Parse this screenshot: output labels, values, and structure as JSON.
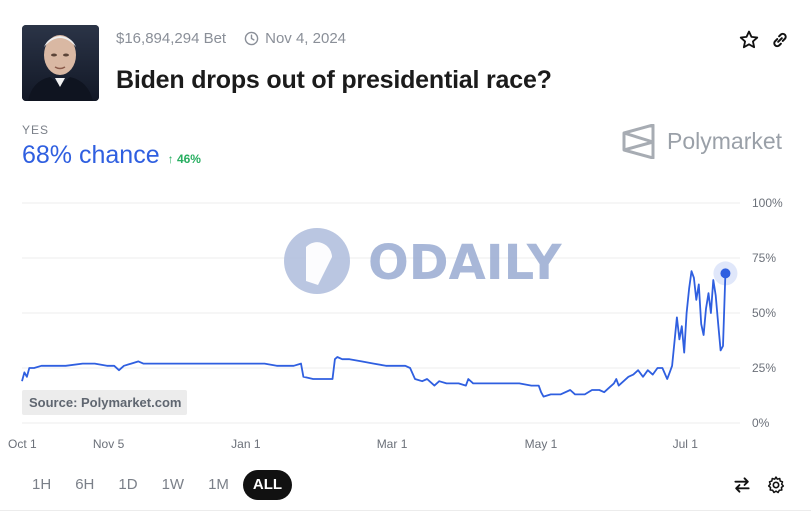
{
  "market": {
    "volume": "$16,894,294 Bet",
    "end_date": "Nov 4, 2024",
    "title": "Biden drops out of presidential race?",
    "outcome_label": "YES",
    "chance": "68% chance",
    "change": "↑ 46%",
    "brand": "Polymarket",
    "watermark": "ODAILY",
    "source": "Source: Polymarket.com"
  },
  "icons": {
    "thumbnail": "portrait-photo",
    "clock": "clock-icon",
    "star": "star-icon",
    "link": "link-icon",
    "brand_logo": "polymarket-logo",
    "swap": "swap-arrows-icon",
    "settings": "gear-icon"
  },
  "colors": {
    "line": "#2f5fe0",
    "up": "#27ae60",
    "watermark": "#9fb0d4"
  },
  "time_buttons": [
    "1H",
    "6H",
    "1D",
    "1W",
    "1M",
    "ALL"
  ],
  "time_selected": "ALL",
  "chart_data": {
    "type": "line",
    "ylim": [
      0,
      100
    ],
    "yticks": [
      "0%",
      "25%",
      "50%",
      "75%",
      "100%"
    ],
    "ytick_values": [
      0,
      25,
      50,
      75,
      100
    ],
    "xticks": [
      {
        "label": "Oct 1",
        "day": 0
      },
      {
        "label": "Nov 5",
        "day": 35
      },
      {
        "label": "Jan 1",
        "day": 92
      },
      {
        "label": "Mar 1",
        "day": 152
      },
      {
        "label": "May 1",
        "day": 213
      },
      {
        "label": "Jul 1",
        "day": 274
      }
    ],
    "grid": true,
    "series": [
      {
        "values": [
          [
            0,
            19
          ],
          [
            1,
            23
          ],
          [
            2,
            21
          ],
          [
            3,
            25
          ],
          [
            5,
            25
          ],
          [
            8,
            26
          ],
          [
            12,
            26
          ],
          [
            18,
            26
          ],
          [
            25,
            27
          ],
          [
            30,
            27
          ],
          [
            35,
            26
          ],
          [
            38,
            26
          ],
          [
            40,
            24
          ],
          [
            42,
            26
          ],
          [
            45,
            27
          ],
          [
            48,
            28
          ],
          [
            50,
            27
          ],
          [
            55,
            27
          ],
          [
            60,
            27
          ],
          [
            65,
            27
          ],
          [
            70,
            27
          ],
          [
            75,
            27
          ],
          [
            80,
            27
          ],
          [
            85,
            27
          ],
          [
            90,
            27
          ],
          [
            95,
            27
          ],
          [
            100,
            27
          ],
          [
            105,
            26
          ],
          [
            108,
            26
          ],
          [
            112,
            26
          ],
          [
            115,
            27
          ],
          [
            116,
            21
          ],
          [
            120,
            20
          ],
          [
            125,
            20
          ],
          [
            128,
            20
          ],
          [
            129,
            29
          ],
          [
            130,
            30
          ],
          [
            132,
            29
          ],
          [
            135,
            29
          ],
          [
            140,
            28
          ],
          [
            145,
            27
          ],
          [
            150,
            26
          ],
          [
            155,
            26
          ],
          [
            158,
            26
          ],
          [
            160,
            25
          ],
          [
            162,
            20
          ],
          [
            165,
            19
          ],
          [
            167,
            20
          ],
          [
            170,
            17
          ],
          [
            172,
            19
          ],
          [
            175,
            18
          ],
          [
            180,
            18
          ],
          [
            183,
            17
          ],
          [
            184,
            20
          ],
          [
            186,
            18
          ],
          [
            190,
            18
          ],
          [
            195,
            18
          ],
          [
            200,
            18
          ],
          [
            205,
            18
          ],
          [
            210,
            17
          ],
          [
            213,
            17
          ],
          [
            214,
            14
          ],
          [
            215,
            12
          ],
          [
            218,
            13
          ],
          [
            222,
            13
          ],
          [
            226,
            15
          ],
          [
            228,
            13
          ],
          [
            232,
            13
          ],
          [
            235,
            15
          ],
          [
            238,
            15
          ],
          [
            240,
            14
          ],
          [
            242,
            16
          ],
          [
            244,
            18
          ],
          [
            245,
            20
          ],
          [
            246,
            17
          ],
          [
            250,
            21
          ],
          [
            252,
            22
          ],
          [
            254,
            24
          ],
          [
            256,
            21
          ],
          [
            258,
            24
          ],
          [
            260,
            22
          ],
          [
            262,
            25
          ],
          [
            264,
            25
          ],
          [
            266,
            20
          ],
          [
            267,
            23
          ],
          [
            268,
            26
          ],
          [
            270,
            48
          ],
          [
            271,
            38
          ],
          [
            272,
            44
          ],
          [
            273,
            32
          ],
          [
            274,
            50
          ],
          [
            275,
            61
          ],
          [
            276,
            69
          ],
          [
            277,
            66
          ],
          [
            278,
            56
          ],
          [
            279,
            63
          ],
          [
            280,
            45
          ],
          [
            281,
            40
          ],
          [
            282,
            52
          ],
          [
            283,
            59
          ],
          [
            284,
            50
          ],
          [
            285,
            65
          ],
          [
            286,
            58
          ],
          [
            287,
            45
          ],
          [
            288,
            33
          ],
          [
            289,
            35
          ],
          [
            290,
            68
          ]
        ]
      }
    ],
    "last_value": 68
  }
}
